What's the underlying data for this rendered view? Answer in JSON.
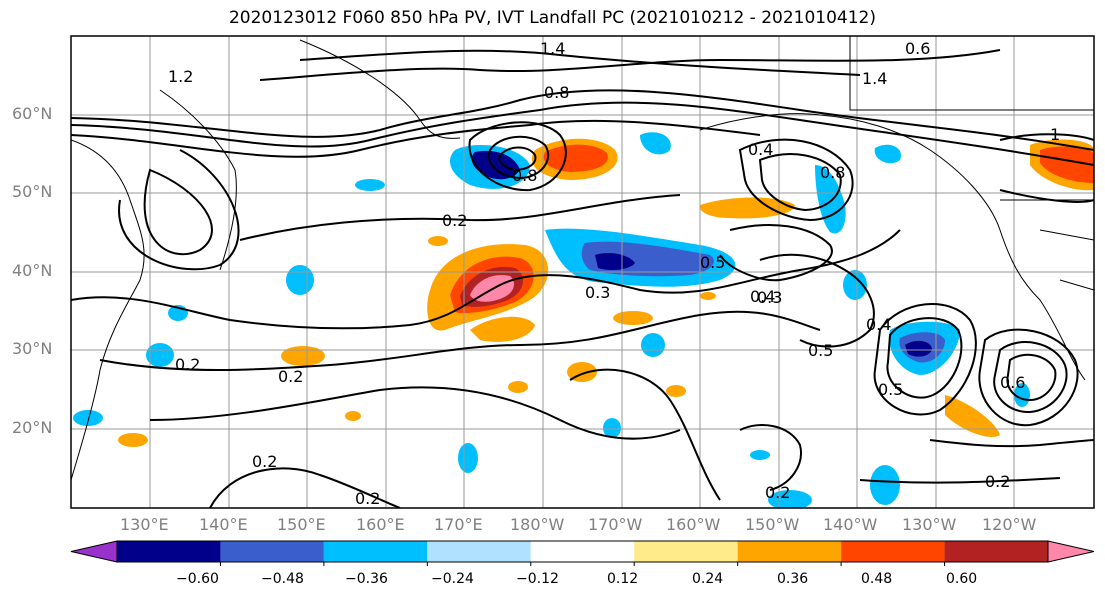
{
  "title": "2020123012 F060 850 hPa PV, IVT Landfall PC (2021010212 - 2021010412)",
  "lat_labels": [
    "60°N",
    "50°N",
    "40°N",
    "30°N",
    "20°N"
  ],
  "lon_labels": [
    "130°E",
    "140°E",
    "150°E",
    "160°E",
    "170°E",
    "180°W",
    "170°W",
    "160°W",
    "150°W",
    "140°W",
    "130°W",
    "120°W"
  ],
  "colorbar": {
    "colors": [
      "#9932cc",
      "#00008b",
      "#3a5fcd",
      "#00bfff",
      "#b0e2ff",
      "#ffffff",
      "#ffeb8a",
      "#ffa500",
      "#ff4500",
      "#b22222",
      "#ff88aa"
    ],
    "tick_labels": [
      "−0.60",
      "−0.48",
      "−0.36",
      "−0.24",
      "−0.12",
      "0.12",
      "0.24",
      "0.36",
      "0.48",
      "0.60"
    ]
  },
  "contour_labels": [
    "0.2",
    "0.2",
    "0.2",
    "0.2",
    "0.2",
    "0.2",
    "0.2",
    "0.3",
    "0.3",
    "0.4",
    "0.4",
    "0.5",
    "0.5",
    "0.5",
    "0.8",
    "0.8",
    "0.8",
    "1.2",
    "1.4",
    "1.4",
    "0.4",
    "0.6",
    "0.6",
    "1"
  ]
}
